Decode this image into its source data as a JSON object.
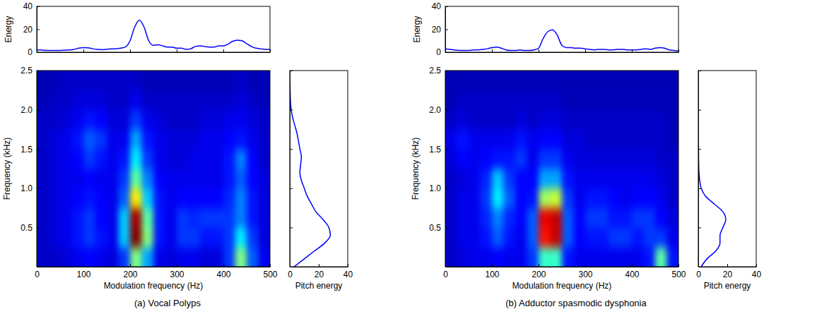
{
  "chart_data": [
    {
      "type": "spectrogram",
      "title": "(a) Vocal Polyps",
      "xlabel": "Modulation frequency (Hz)",
      "ylabel": "Frequency (kHz)",
      "xlim": [
        0,
        500
      ],
      "ylim": [
        0,
        2.5
      ],
      "xticks": [
        0,
        100,
        200,
        300,
        400,
        500
      ],
      "yticks": [
        0.5,
        {
          "value": 1,
          "label": "1.0"
        },
        1.5,
        {
          "value": 2,
          "label": "2.0"
        },
        2.5
      ],
      "color_range": [
        0,
        28
      ],
      "x": [
        12.5,
        37.5,
        62.5,
        87.5,
        112.5,
        137.5,
        162.5,
        187.5,
        212.5,
        237.5,
        262.5,
        287.5,
        312.5,
        337.5,
        362.5,
        387.5,
        412.5,
        437.5,
        462.5,
        487.5
      ],
      "y": [
        0.125,
        0.375,
        0.625,
        0.875,
        1.125,
        1.375,
        1.625,
        1.875,
        2.125,
        2.375
      ],
      "z": [
        [
          2,
          2,
          2.5,
          3,
          3.5,
          3,
          2.5,
          5,
          14,
          8,
          3,
          2.5,
          3,
          3,
          2.5,
          2.5,
          5,
          14,
          6,
          3
        ],
        [
          2,
          2.5,
          3,
          4,
          5,
          4,
          3,
          9,
          28,
          14,
          4,
          3,
          5,
          5,
          4,
          4,
          5,
          10,
          5,
          2.5
        ],
        [
          2,
          2.5,
          3,
          4,
          5,
          3.5,
          3,
          9,
          27,
          13,
          4,
          3,
          5,
          4.5,
          5,
          5,
          5,
          7,
          4,
          2.5
        ],
        [
          2,
          2.5,
          3,
          3.5,
          4,
          3.5,
          3,
          6,
          18,
          9,
          4,
          3,
          3.5,
          3.5,
          3.5,
          3.5,
          4.5,
          7,
          4,
          2.5
        ],
        [
          2,
          2.5,
          3,
          3,
          3.5,
          3,
          3,
          5,
          13,
          7,
          3.5,
          3,
          3,
          3,
          3,
          3,
          4,
          6,
          3.5,
          2.5
        ],
        [
          2,
          2.5,
          3,
          3.5,
          5,
          4,
          3,
          4,
          10,
          5,
          3,
          2.5,
          2.5,
          3,
          3,
          3,
          4,
          7,
          3.5,
          2
        ],
        [
          2,
          2.5,
          3,
          4,
          6,
          5,
          3,
          3,
          8,
          4,
          3,
          2.5,
          2.5,
          2.5,
          3,
          3,
          3.5,
          4,
          3,
          2
        ],
        [
          2,
          2,
          2.5,
          3,
          4,
          3.5,
          2.5,
          2.5,
          5,
          3,
          2.5,
          2,
          2,
          2,
          2.5,
          2.5,
          3,
          3,
          2.5,
          2
        ],
        [
          1.5,
          2,
          2,
          2.5,
          2.5,
          2.5,
          2,
          2,
          3,
          2,
          2,
          2,
          2,
          2,
          2,
          2,
          2,
          2.5,
          2,
          1.5
        ],
        [
          1.5,
          1.5,
          2,
          2,
          2,
          2,
          2,
          2,
          2,
          1.5,
          1.5,
          1.5,
          1.5,
          1.5,
          1.5,
          1.5,
          1.5,
          2,
          1.5,
          1.5
        ]
      ],
      "energy": {
        "type": "line",
        "ylabel": "Energy",
        "color": "#0000ff",
        "xlim": [
          0,
          500
        ],
        "ylim": [
          0,
          40
        ],
        "xticks": [
          0,
          100,
          200,
          300,
          400,
          500
        ],
        "yticks": [
          0,
          20,
          40
        ],
        "tick_labels": "y",
        "x": [
          0,
          10,
          20,
          30,
          40,
          50,
          60,
          70,
          80,
          90,
          100,
          110,
          120,
          130,
          140,
          150,
          160,
          170,
          180,
          190,
          200,
          210,
          220,
          230,
          240,
          250,
          260,
          270,
          280,
          290,
          300,
          310,
          320,
          330,
          340,
          350,
          360,
          370,
          380,
          390,
          400,
          410,
          420,
          430,
          440,
          450,
          460,
          470,
          480,
          490,
          500
        ],
        "values": [
          2,
          2,
          1.5,
          1.5,
          1.5,
          1.5,
          1.8,
          2,
          2.5,
          3.5,
          4,
          3.8,
          3,
          2.5,
          2.2,
          2.5,
          3,
          3,
          3.5,
          4.5,
          10,
          22,
          28,
          22,
          10,
          6,
          6.5,
          5.5,
          4.5,
          4.5,
          3.5,
          3.5,
          2.5,
          3,
          5,
          5.5,
          5,
          4.5,
          4.5,
          5.5,
          5.5,
          7,
          9.5,
          10.5,
          10,
          7.5,
          5,
          3.5,
          3,
          2.5,
          2.5
        ]
      },
      "pitch": {
        "type": "line",
        "orientation": "horizontal",
        "xlabel": "Pitch energy",
        "color": "#0000ff",
        "xlim": [
          0,
          40
        ],
        "ylim": [
          0,
          2.5
        ],
        "xticks": [
          0,
          20,
          40
        ],
        "yticks": [
          0.5,
          1,
          1.5,
          2,
          2.5
        ],
        "tick_labels": "x",
        "y": [
          0,
          0.1,
          0.2,
          0.3,
          0.4,
          0.5,
          0.6,
          0.7,
          0.8,
          0.9,
          1,
          1.1,
          1.2,
          1.3,
          1.4,
          1.5,
          1.6,
          1.7,
          1.8,
          1.9,
          2,
          2.1,
          2.2,
          2.3,
          2.4,
          2.5
        ],
        "values": [
          3,
          10,
          17,
          24,
          28,
          27,
          23,
          18,
          15,
          12,
          10,
          8,
          7,
          7.5,
          8,
          7,
          6,
          5,
          3.5,
          2,
          1,
          0.5,
          0.3,
          0.2,
          0.1,
          0.1
        ]
      }
    },
    {
      "type": "spectrogram",
      "title": "(b) Adductor spasmodic dysphonia",
      "xlabel": "Modulation frequency (Hz)",
      "ylabel": "Frequency (kHz)",
      "xlim": [
        0,
        500
      ],
      "ylim": [
        0,
        2.5
      ],
      "xticks": [
        0,
        100,
        200,
        300,
        400,
        500
      ],
      "yticks": [
        0.5,
        {
          "value": 1,
          "label": "1.0"
        },
        1.5,
        {
          "value": 2,
          "label": "2.0"
        },
        2.5
      ],
      "color_range": [
        0,
        28
      ],
      "x": [
        12.5,
        37.5,
        62.5,
        87.5,
        112.5,
        137.5,
        162.5,
        187.5,
        212.5,
        237.5,
        262.5,
        287.5,
        312.5,
        337.5,
        362.5,
        387.5,
        412.5,
        437.5,
        462.5,
        487.5
      ],
      "y": [
        0.125,
        0.375,
        0.625,
        0.875,
        1.125,
        1.375,
        1.625,
        1.875,
        2.125,
        2.375
      ],
      "z": [
        [
          2,
          2.5,
          3,
          3,
          3.5,
          3,
          3,
          5,
          12,
          12,
          4,
          3,
          3,
          3,
          3,
          3,
          3,
          4,
          13,
          4
        ],
        [
          2,
          3,
          3,
          4,
          6,
          4,
          3,
          6,
          24,
          26,
          6,
          3.5,
          4,
          4,
          5,
          5,
          4,
          5,
          5,
          3
        ],
        [
          2,
          3,
          3,
          4.5,
          7,
          4.5,
          3.5,
          6,
          25,
          26,
          6,
          3.5,
          5,
          5,
          4,
          4,
          5,
          5,
          3.5,
          2.5
        ],
        [
          2,
          3,
          3,
          5,
          10,
          6,
          3.5,
          4,
          15,
          16,
          5,
          3,
          4,
          4,
          3.5,
          3,
          3.5,
          3.5,
          3,
          2
        ],
        [
          2,
          2.5,
          3,
          4.5,
          9,
          5,
          3.5,
          3.5,
          8,
          8,
          4,
          3,
          3,
          3,
          3,
          3,
          3,
          3,
          2.5,
          2
        ],
        [
          2.5,
          3.5,
          3,
          3.5,
          4,
          4,
          5,
          3,
          5,
          5,
          3,
          2.5,
          2.5,
          2.5,
          2.5,
          2.5,
          2.5,
          2.5,
          2,
          2
        ],
        [
          3,
          4,
          3,
          3,
          3,
          3,
          4,
          3,
          3.5,
          3.5,
          2.5,
          2.5,
          2,
          2,
          2,
          2,
          2,
          2,
          2,
          1.5
        ],
        [
          2,
          2.5,
          2,
          2,
          2,
          2,
          2.5,
          2,
          2.5,
          2.5,
          2,
          2,
          2,
          2,
          2,
          2,
          2,
          2,
          2,
          1.5
        ],
        [
          1.5,
          2,
          2,
          2,
          2,
          2,
          2,
          2,
          2,
          2,
          1.5,
          1.5,
          1.5,
          1.5,
          1.5,
          1.5,
          1.5,
          1.5,
          1.5,
          1.5
        ],
        [
          1.5,
          1.5,
          1.5,
          1.5,
          1.5,
          1.5,
          1.5,
          1.5,
          1.5,
          1.5,
          1.5,
          1.5,
          1.5,
          1.5,
          1.5,
          1.5,
          1.5,
          1.5,
          1.5,
          1.5
        ]
      ],
      "energy": {
        "type": "line",
        "ylabel": "Energy",
        "color": "#0000ff",
        "xlim": [
          0,
          500
        ],
        "ylim": [
          0,
          40
        ],
        "xticks": [
          0,
          100,
          200,
          300,
          400,
          500
        ],
        "yticks": [
          0,
          20,
          40
        ],
        "tick_labels": "y",
        "x": [
          0,
          10,
          20,
          30,
          40,
          50,
          60,
          70,
          80,
          90,
          100,
          110,
          120,
          130,
          140,
          150,
          160,
          170,
          180,
          190,
          200,
          210,
          220,
          230,
          240,
          250,
          260,
          270,
          280,
          290,
          300,
          310,
          320,
          330,
          340,
          350,
          360,
          370,
          380,
          390,
          400,
          410,
          420,
          430,
          440,
          450,
          460,
          470,
          480,
          490,
          500
        ],
        "values": [
          3,
          2.5,
          2,
          1.5,
          1.5,
          1.5,
          2,
          2,
          2.5,
          3,
          4,
          4.5,
          3.5,
          2,
          1.5,
          1.5,
          2,
          1.5,
          1.5,
          2,
          3.5,
          12,
          18,
          19.5,
          15,
          6,
          4,
          4,
          3.5,
          3.5,
          3,
          2.5,
          2,
          2.5,
          2.5,
          2,
          2,
          2.5,
          2.5,
          2,
          2,
          2,
          2.5,
          3,
          2.5,
          3.5,
          4,
          3.5,
          2,
          1.5,
          1
        ]
      },
      "pitch": {
        "type": "line",
        "orientation": "horizontal",
        "xlabel": "Pitch energy",
        "color": "#0000ff",
        "xlim": [
          0,
          40
        ],
        "ylim": [
          0,
          2.5
        ],
        "xticks": [
          0,
          20,
          40
        ],
        "yticks": [
          0.5,
          1,
          1.5,
          2,
          2.5
        ],
        "tick_labels": "x",
        "y": [
          0,
          0.1,
          0.2,
          0.3,
          0.4,
          0.5,
          0.6,
          0.7,
          0.8,
          0.9,
          1,
          1.1,
          1.2,
          1.3,
          1.4,
          1.5,
          1.6,
          1.7,
          1.8,
          1.9,
          2,
          2.1,
          2.2,
          2.3,
          2.4,
          2.5
        ],
        "values": [
          2,
          6,
          12,
          15,
          15,
          17,
          19,
          17,
          11,
          5,
          2,
          1,
          0.5,
          0.3,
          0.2,
          0.2,
          0.1,
          0.1,
          0.1,
          0.1,
          0.1,
          0.1,
          0.1,
          0.1,
          0.1,
          0.1
        ]
      }
    }
  ]
}
